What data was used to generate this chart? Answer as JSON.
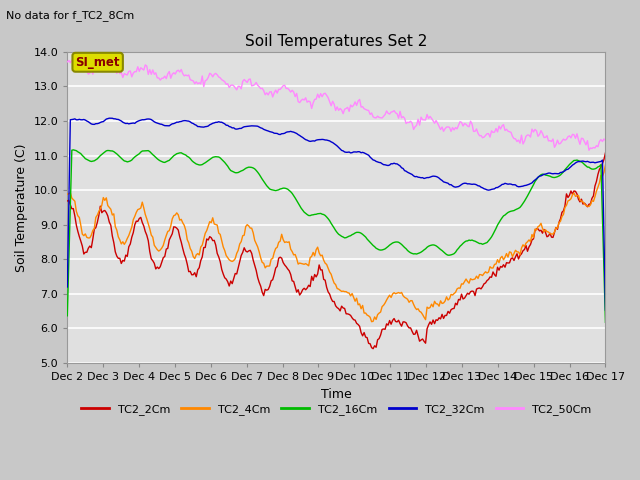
{
  "title": "Soil Temperatures Set 2",
  "subtitle": "No data for f_TC2_8Cm",
  "ylabel": "Soil Temperature (C)",
  "xlabel": "Time",
  "ylim": [
    5.0,
    14.0
  ],
  "yticks": [
    5.0,
    6.0,
    7.0,
    8.0,
    9.0,
    10.0,
    11.0,
    12.0,
    13.0,
    14.0
  ],
  "xtick_labels": [
    "Dec 2",
    "Dec 3",
    "Dec 4",
    "Dec 5",
    "Dec 6",
    "Dec 7",
    "Dec 8",
    "Dec 9",
    "Dec 10",
    "Dec 11",
    "Dec 12",
    "Dec 13",
    "Dec 14",
    "Dec 15",
    "Dec 16",
    "Dec 17"
  ],
  "colors": {
    "TC2_2Cm": "#cc0000",
    "TC2_4Cm": "#ff8800",
    "TC2_16Cm": "#00bb00",
    "TC2_32Cm": "#0000cc",
    "TC2_50Cm": "#ff88ff"
  },
  "background_color": "#c8c8c8",
  "plot_bg_color": "#e0e0e0",
  "grid_color": "#ffffff",
  "si_met_label": "SI_met",
  "si_met_bg": "#dddd00",
  "si_met_border": "#888800"
}
